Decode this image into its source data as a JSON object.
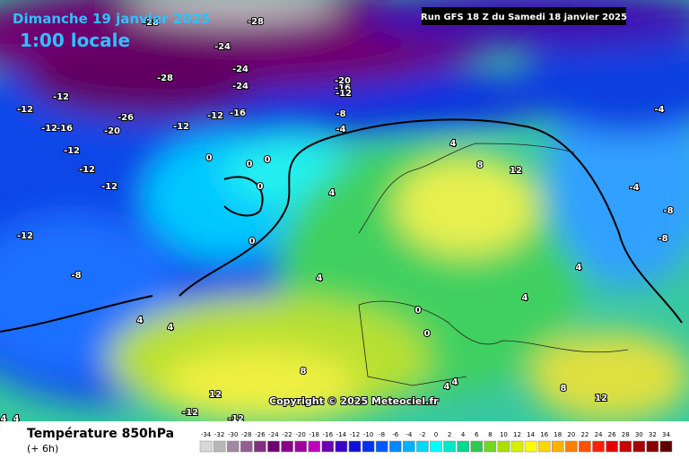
{
  "header": {
    "date": "Dimanche 19 janvier 2025",
    "time": "1:00 locale",
    "run": "Run GFS 18 Z du Samedi 18 janvier 2025"
  },
  "copyright": "Copyright © 2025 Meteociel.fr",
  "footer": {
    "title": "Température 850hPa",
    "step": "(+ 6h)"
  },
  "legend": {
    "labels": [
      "-34",
      "-32",
      "-30",
      "-28",
      "-26",
      "-24",
      "-22",
      "-20",
      "-18",
      "-16",
      "-14",
      "-12",
      "-10",
      "-8",
      "-6",
      "-4",
      "-2",
      "0",
      "2",
      "4",
      "6",
      "8",
      "10",
      "12",
      "14",
      "16",
      "18",
      "20",
      "22",
      "24",
      "26",
      "28",
      "30",
      "32",
      "34"
    ],
    "colors": [
      "#d8d8d8",
      "#b8b8b8",
      "#a088a0",
      "#906090",
      "#803080",
      "#700070",
      "#8a008a",
      "#a000a0",
      "#c000c0",
      "#6a00b0",
      "#3a00c8",
      "#1010d8",
      "#0030f0",
      "#0058ff",
      "#0088ff",
      "#00b0ff",
      "#00d8ff",
      "#00ffff",
      "#00e8c8",
      "#00d890",
      "#30c850",
      "#70d820",
      "#a8e000",
      "#d8f000",
      "#ffff00",
      "#ffd800",
      "#ffb000",
      "#ff8000",
      "#ff5000",
      "#ff2000",
      "#e80000",
      "#c80000",
      "#a80000",
      "#880000",
      "#600000"
    ]
  },
  "contour_labels": [
    "-28",
    "-28",
    "-24",
    "-24",
    "-28",
    "-24",
    "-20",
    "-16",
    "-12",
    "-12",
    "-12",
    "-12",
    "-16",
    "-26",
    "-20",
    "-12",
    "-16",
    "-12",
    "-12",
    "-8",
    "-4",
    "-4",
    "-12",
    "-12",
    "-12",
    "-8",
    "0",
    "0",
    "0",
    "0",
    "4",
    "4",
    "0",
    "4",
    "12",
    "8",
    "4",
    "-4",
    "-8",
    "-8",
    "4",
    "4",
    "4",
    "4",
    "0",
    "0",
    "4",
    "8",
    "12",
    "-12",
    "-12",
    "4",
    "4",
    "12",
    "8"
  ]
}
